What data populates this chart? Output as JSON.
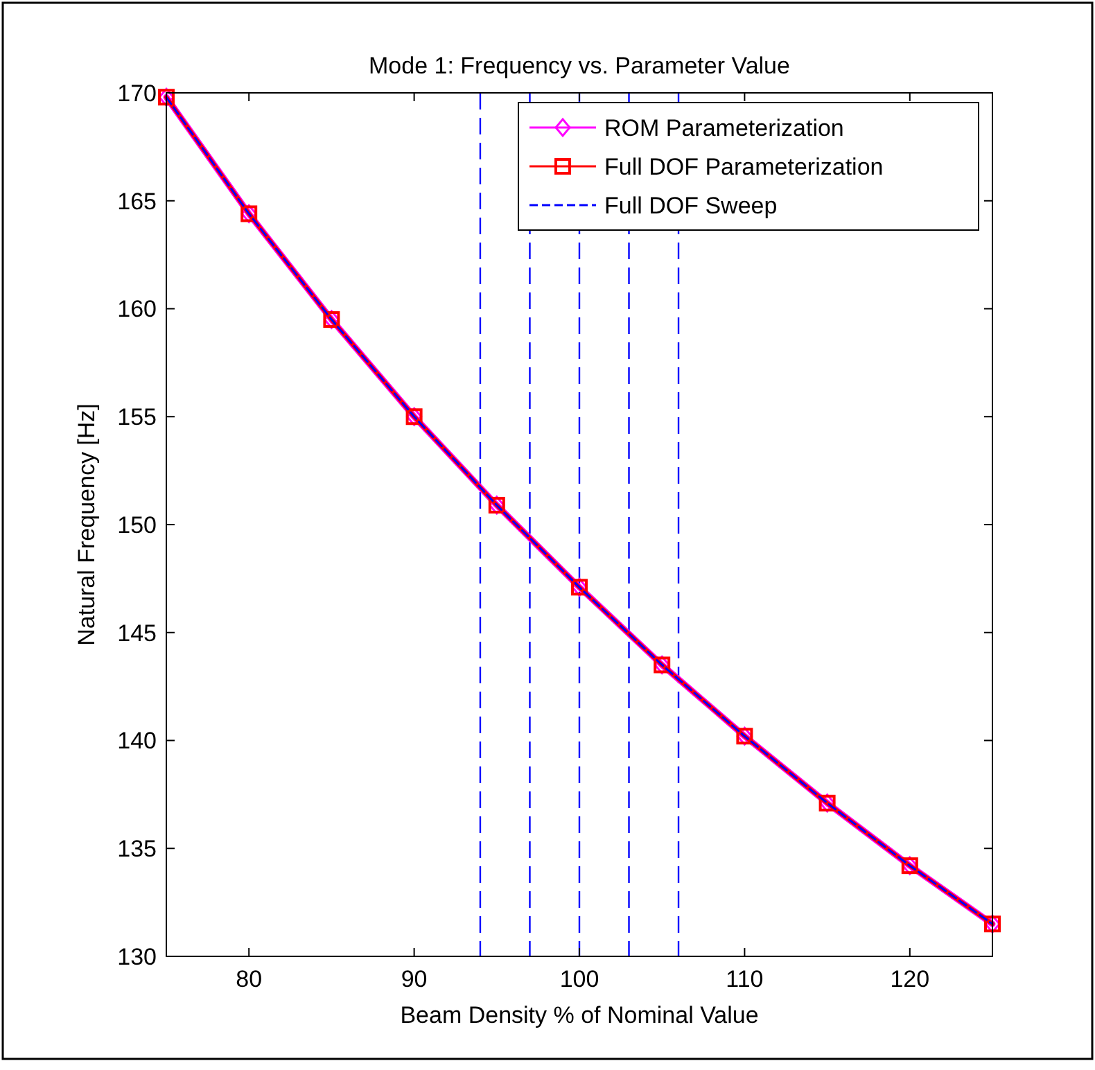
{
  "chart_data": {
    "type": "line",
    "title": "Mode 1: Frequency vs. Parameter Value",
    "xlabel": "Beam Density % of Nominal Value",
    "ylabel": "Natural Frequency [Hz]",
    "x": [
      75,
      80,
      85,
      90,
      95,
      100,
      105,
      110,
      115,
      120,
      125
    ],
    "series": [
      {
        "name": "ROM Parameterization",
        "color": "#ff00ff",
        "marker": "diamond",
        "line_style": "solid",
        "values": [
          169.8,
          164.4,
          159.5,
          155.0,
          150.9,
          147.1,
          143.5,
          140.2,
          137.1,
          134.2,
          131.5
        ]
      },
      {
        "name": "Full DOF Parameterization",
        "color": "#ff0000",
        "marker": "square",
        "line_style": "solid",
        "values": [
          169.8,
          164.4,
          159.5,
          155.0,
          150.9,
          147.1,
          143.5,
          140.2,
          137.1,
          134.2,
          131.5
        ]
      },
      {
        "name": "Full DOF Sweep",
        "color": "#0000ff",
        "marker": "none",
        "line_style": "dashed",
        "values": [
          169.8,
          164.4,
          159.5,
          155.0,
          150.9,
          147.1,
          143.5,
          140.2,
          137.1,
          134.2,
          131.5
        ]
      }
    ],
    "ref_lines": [
      {
        "axis": "x",
        "value": 94,
        "color": "#0000ff",
        "line_style": "dashed"
      },
      {
        "axis": "x",
        "value": 97,
        "color": "#0000ff",
        "line_style": "dashed"
      },
      {
        "axis": "x",
        "value": 100,
        "color": "#0000ff",
        "line_style": "dashed"
      },
      {
        "axis": "x",
        "value": 103,
        "color": "#0000ff",
        "line_style": "dashed"
      },
      {
        "axis": "x",
        "value": 106,
        "color": "#0000ff",
        "line_style": "dashed"
      }
    ],
    "xlim": [
      75,
      125
    ],
    "xticks": [
      80,
      90,
      100,
      110,
      120
    ],
    "ylim": [
      130,
      170
    ],
    "yticks": [
      130,
      135,
      140,
      145,
      150,
      155,
      160,
      165,
      170
    ],
    "grid": false,
    "legend": "top right"
  }
}
